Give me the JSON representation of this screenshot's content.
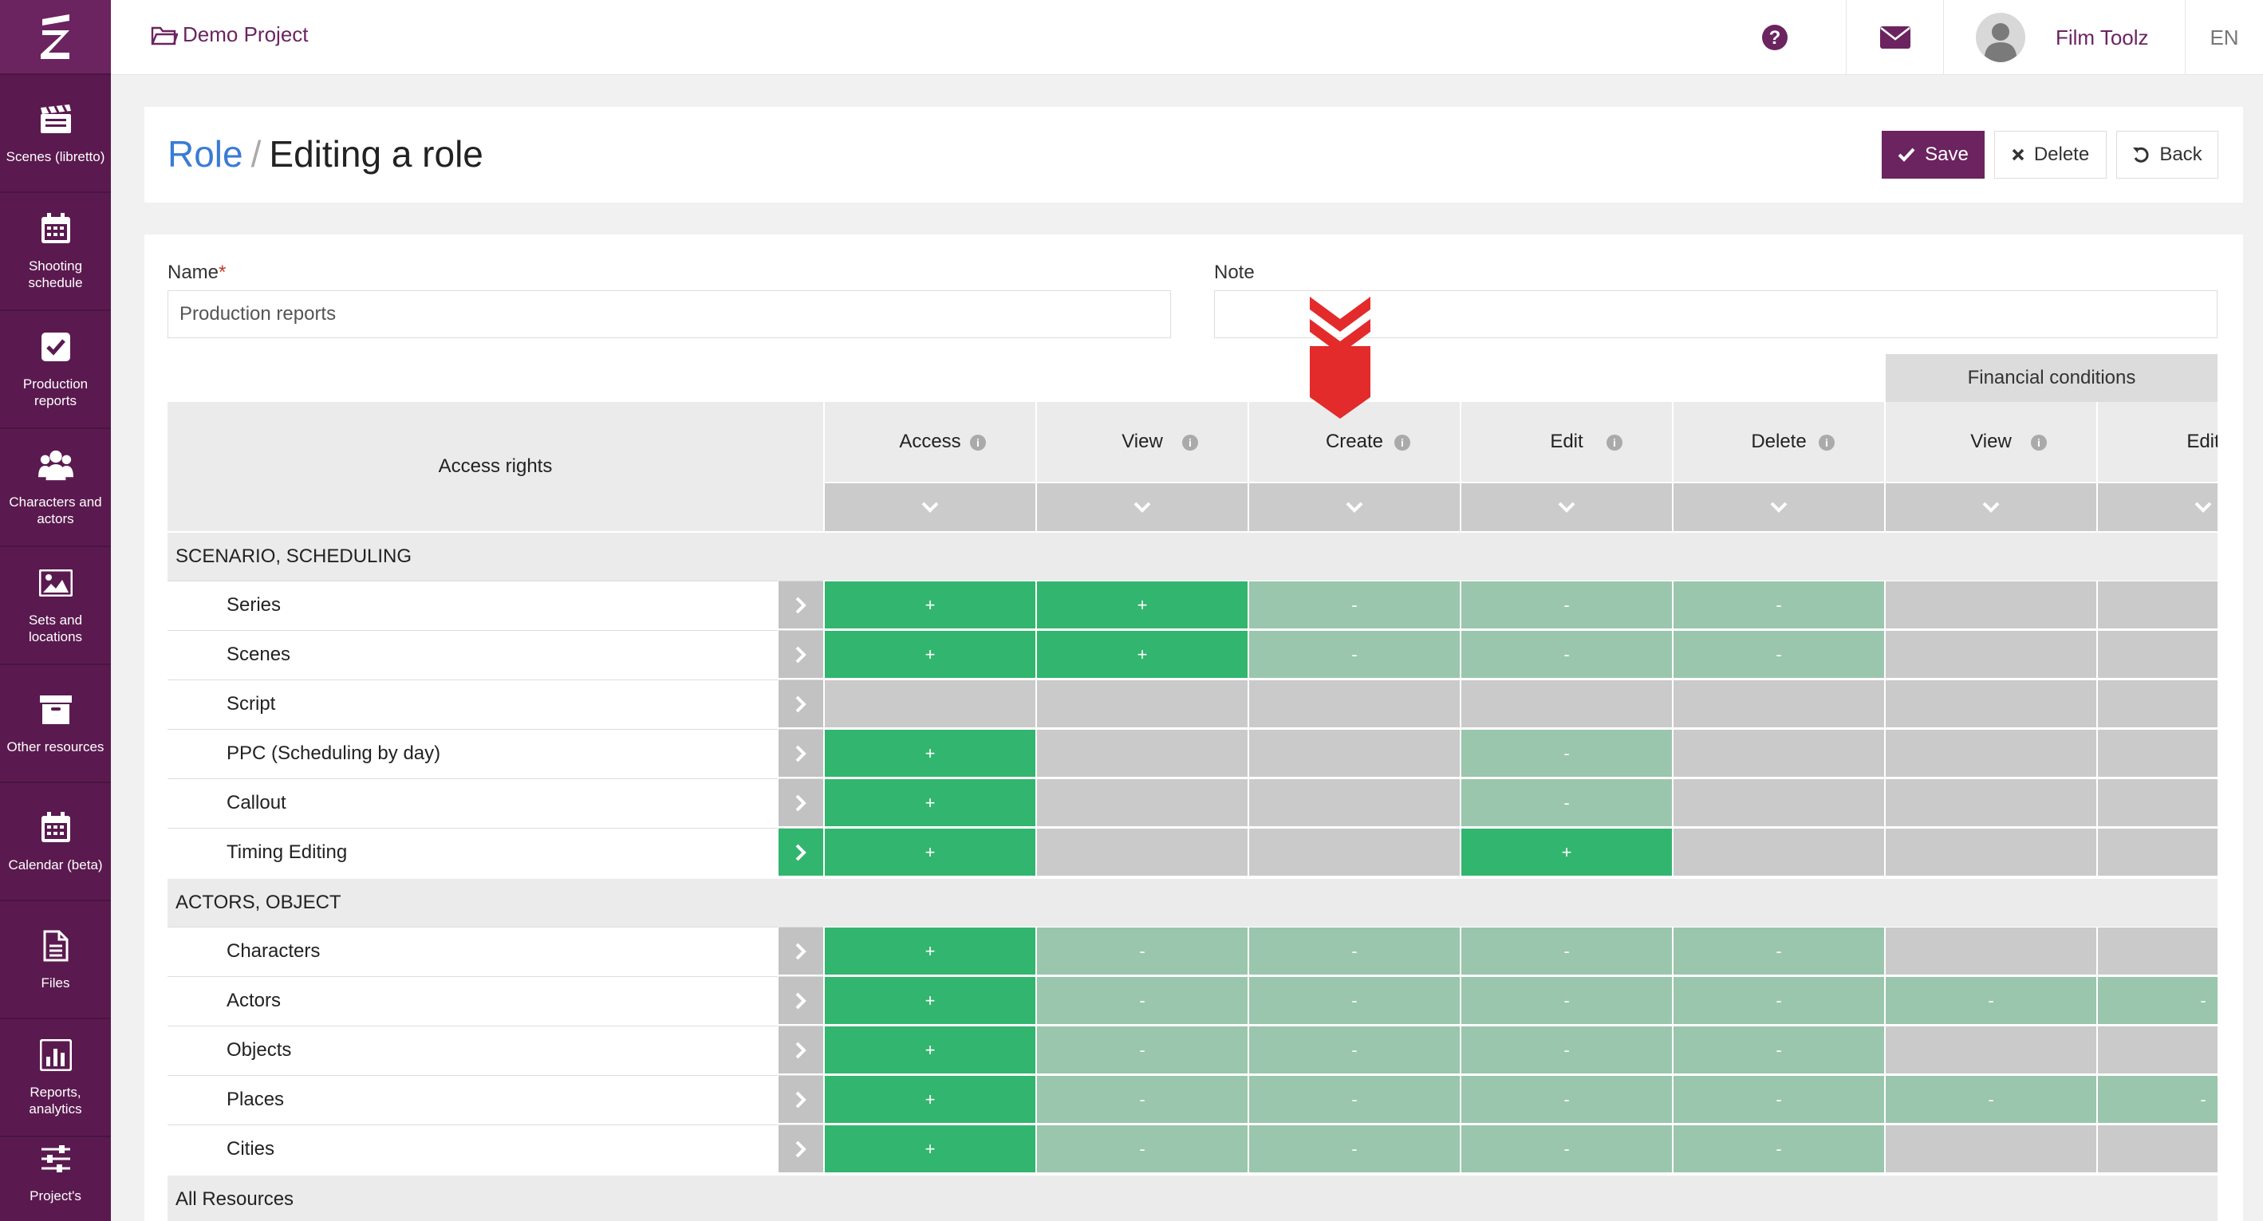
{
  "sidebar": {
    "logo_icon": "z-logo-icon",
    "items": [
      {
        "label": "Scenes (libretto)",
        "icon": "clapperboard-icon"
      },
      {
        "label": "Shooting schedule",
        "icon": "calendar-icon"
      },
      {
        "label": "Production reports",
        "icon": "checkbox-icon"
      },
      {
        "label": "Characters and actors",
        "icon": "people-icon"
      },
      {
        "label": "Sets and locations",
        "icon": "image-icon"
      },
      {
        "label": "Other resources",
        "icon": "archive-box-icon"
      },
      {
        "label": "Calendar (beta)",
        "icon": "calendar-icon"
      },
      {
        "label": "Files",
        "icon": "file-icon"
      },
      {
        "label": "Reports, analytics",
        "icon": "bar-chart-icon"
      },
      {
        "label": "Project's",
        "icon": "sliders-icon"
      }
    ]
  },
  "topbar": {
    "project_name": "Demo Project",
    "user_name": "Film Toolz",
    "language": "EN"
  },
  "header": {
    "breadcrumb_root": "Role",
    "separator": "/",
    "title": "Editing a role",
    "save_label": "Save",
    "delete_label": "Delete",
    "back_label": "Back"
  },
  "form": {
    "name_label": "Name",
    "name_required": "*",
    "name_value": "Production reports",
    "note_label": "Note",
    "note_value": ""
  },
  "table": {
    "access_rights_header": "Access rights",
    "financial_header": "Financial conditions",
    "info_glyph": "i",
    "columns": [
      "Access",
      "View",
      "Create",
      "Edit",
      "Delete",
      "View",
      "Edit"
    ],
    "sections": [
      {
        "title": "SCENARIO, SCHEDULING",
        "rows": [
          {
            "label": "Series",
            "cells": [
              "+",
              "+",
              "-",
              "-",
              "-",
              "",
              ""
            ]
          },
          {
            "label": "Scenes",
            "cells": [
              "+",
              "+",
              "-",
              "-",
              "-",
              "",
              ""
            ]
          },
          {
            "label": "Script",
            "cells": [
              "",
              "",
              "",
              "",
              "",
              "",
              ""
            ]
          },
          {
            "label": "PPC (Scheduling by day)",
            "cells": [
              "+",
              "",
              "",
              "-",
              "",
              "",
              ""
            ]
          },
          {
            "label": "Callout",
            "cells": [
              "+",
              "",
              "",
              "-",
              "",
              "",
              ""
            ]
          },
          {
            "label": "Timing Editing",
            "cells": [
              "+",
              "",
              "",
              "+",
              "",
              "",
              ""
            ]
          }
        ]
      },
      {
        "title": "ACTORS, OBJECT",
        "rows": [
          {
            "label": "Characters",
            "cells": [
              "+",
              "-",
              "-",
              "-",
              "-",
              "",
              ""
            ]
          },
          {
            "label": "Actors",
            "cells": [
              "+",
              "-",
              "-",
              "-",
              "-",
              "-",
              "-"
            ]
          },
          {
            "label": "Objects",
            "cells": [
              "+",
              "-",
              "-",
              "-",
              "-",
              "",
              ""
            ]
          },
          {
            "label": "Places",
            "cells": [
              "+",
              "-",
              "-",
              "-",
              "-",
              "-",
              "-"
            ]
          },
          {
            "label": "Cities",
            "cells": [
              "+",
              "-",
              "-",
              "-",
              "-",
              "",
              ""
            ]
          }
        ]
      },
      {
        "title": "All Resources",
        "rows": []
      }
    ]
  },
  "colors": {
    "brand": "#6b2460",
    "granted": "#32b56e",
    "inherited": "#99c6ac",
    "unavailable": "#cacaca",
    "link": "#3a7bd5",
    "annotation_arrow": "#e32b2b"
  }
}
